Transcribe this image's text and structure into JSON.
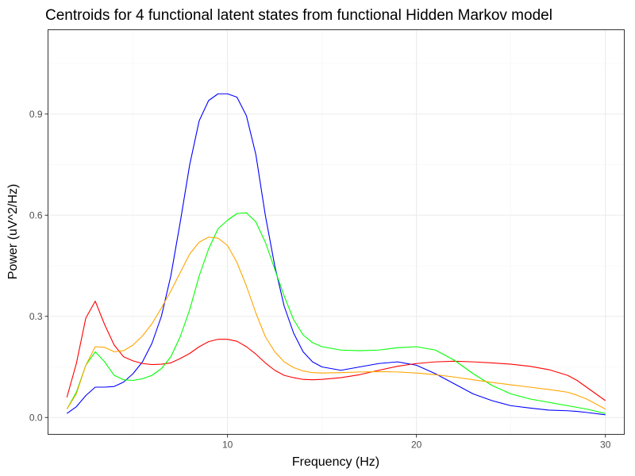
{
  "chart_data": {
    "type": "line",
    "title": "Centroids for 4 functional latent states from functional Hidden Markov model",
    "xlabel": "Frequency (Hz)",
    "ylabel": "Power (uV^2/Hz)",
    "xlim": [
      0.5,
      31
    ],
    "ylim": [
      -0.05,
      1.15
    ],
    "xticks": [
      10,
      20,
      30
    ],
    "xtick_labels": [
      "10",
      "20",
      "30"
    ],
    "yticks": [
      0.0,
      0.3,
      0.6,
      0.9
    ],
    "ytick_labels": [
      "0.0",
      "0.3",
      "0.6",
      "0.9"
    ],
    "grid": true,
    "legend": "none",
    "x": [
      1.5,
      2,
      2.5,
      3,
      3.5,
      4,
      4.5,
      5,
      5.5,
      6,
      6.5,
      7,
      7.5,
      8,
      8.5,
      9,
      9.5,
      10,
      10.5,
      11,
      11.5,
      12,
      12.5,
      13,
      13.5,
      14,
      14.5,
      15,
      16,
      17,
      18,
      19,
      20,
      21,
      22,
      23,
      24,
      25,
      26,
      27,
      28,
      28.5,
      29,
      30
    ],
    "series": [
      {
        "color": "#0000ff",
        "values": [
          0.012,
          0.032,
          0.065,
          0.09,
          0.09,
          0.092,
          0.105,
          0.13,
          0.165,
          0.22,
          0.3,
          0.42,
          0.58,
          0.75,
          0.88,
          0.94,
          0.96,
          0.96,
          0.95,
          0.895,
          0.78,
          0.6,
          0.45,
          0.33,
          0.25,
          0.195,
          0.165,
          0.15,
          0.14,
          0.15,
          0.16,
          0.165,
          0.155,
          0.13,
          0.1,
          0.07,
          0.05,
          0.035,
          0.028,
          0.022,
          0.02,
          0.018,
          0.015,
          0.008
        ]
      },
      {
        "color": "#ff0000",
        "values": [
          0.06,
          0.16,
          0.295,
          0.345,
          0.275,
          0.215,
          0.18,
          0.168,
          0.16,
          0.157,
          0.158,
          0.162,
          0.175,
          0.19,
          0.21,
          0.225,
          0.232,
          0.232,
          0.226,
          0.21,
          0.188,
          0.162,
          0.14,
          0.125,
          0.118,
          0.113,
          0.112,
          0.113,
          0.118,
          0.127,
          0.14,
          0.152,
          0.16,
          0.165,
          0.167,
          0.165,
          0.162,
          0.158,
          0.152,
          0.142,
          0.125,
          0.11,
          0.09,
          0.05
        ]
      },
      {
        "color": "#00ff00",
        "values": [
          0.025,
          0.075,
          0.155,
          0.195,
          0.165,
          0.125,
          0.112,
          0.11,
          0.115,
          0.125,
          0.145,
          0.18,
          0.24,
          0.32,
          0.42,
          0.5,
          0.56,
          0.585,
          0.605,
          0.607,
          0.58,
          0.52,
          0.44,
          0.36,
          0.29,
          0.245,
          0.222,
          0.21,
          0.2,
          0.198,
          0.2,
          0.207,
          0.21,
          0.2,
          0.17,
          0.13,
          0.095,
          0.07,
          0.055,
          0.045,
          0.035,
          0.03,
          0.025,
          0.012
        ]
      },
      {
        "color": "#ffa500",
        "values": [
          0.025,
          0.07,
          0.155,
          0.21,
          0.208,
          0.195,
          0.198,
          0.215,
          0.242,
          0.278,
          0.325,
          0.375,
          0.43,
          0.485,
          0.52,
          0.535,
          0.532,
          0.51,
          0.46,
          0.39,
          0.31,
          0.24,
          0.195,
          0.165,
          0.148,
          0.138,
          0.133,
          0.132,
          0.133,
          0.135,
          0.136,
          0.135,
          0.132,
          0.127,
          0.12,
          0.112,
          0.104,
          0.097,
          0.09,
          0.083,
          0.075,
          0.066,
          0.055,
          0.025
        ]
      }
    ]
  }
}
